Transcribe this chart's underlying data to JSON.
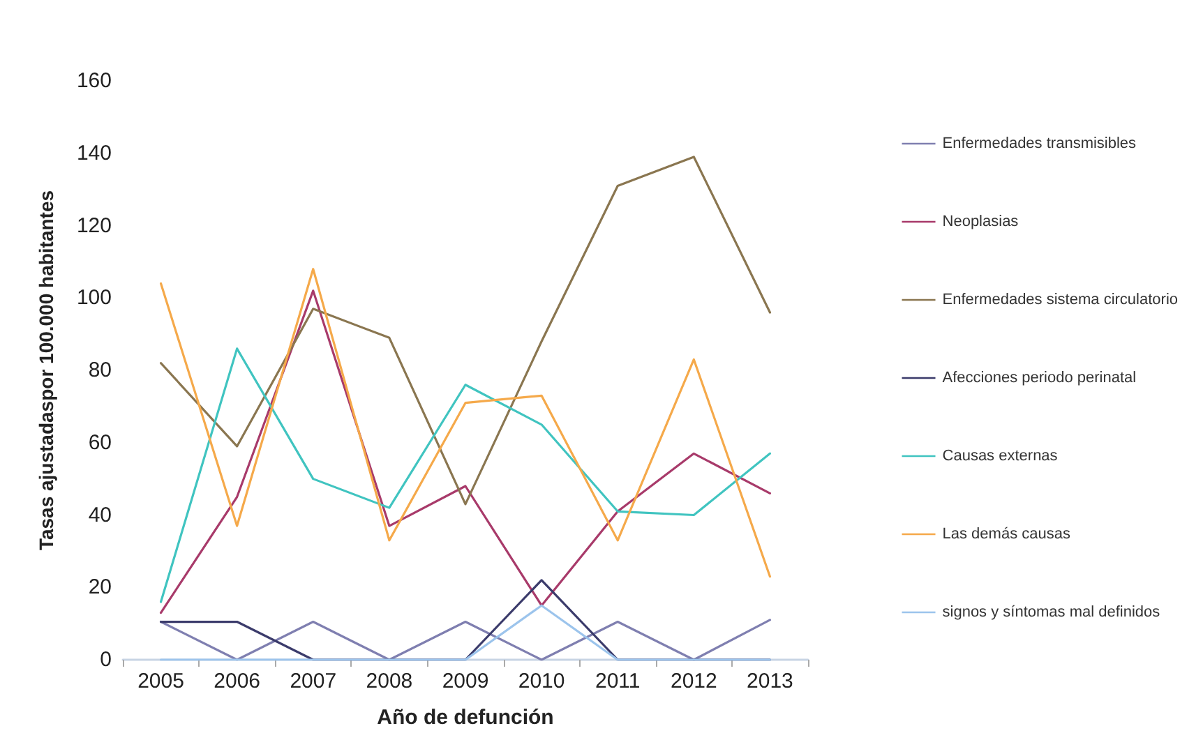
{
  "chart_data": {
    "type": "line",
    "xlabel": "Año de defunción",
    "ylabel": "Tasas ajustadaspor 100.000 habitantes",
    "categories": [
      "2005",
      "2006",
      "2007",
      "2008",
      "2009",
      "2010",
      "2011",
      "2012",
      "2013"
    ],
    "ylim": [
      0,
      160
    ],
    "yticks": [
      0,
      20,
      40,
      60,
      80,
      100,
      120,
      140,
      160
    ],
    "grid": false,
    "legend": "right",
    "marker": "none",
    "line_style": "solid",
    "series": [
      {
        "name": "Enfermedades transmisibles",
        "color": "#7f7fb0",
        "values": [
          10.5,
          0,
          10.5,
          0,
          10.5,
          0,
          10.5,
          0,
          11
        ]
      },
      {
        "name": "Neoplasias",
        "color": "#a83a6a",
        "values": [
          13,
          45,
          102,
          37,
          48,
          15,
          41,
          57,
          46
        ]
      },
      {
        "name": "Enfermedades sistema circulatorio",
        "color": "#8a7650",
        "values": [
          82,
          59,
          97,
          89,
          43,
          88,
          131,
          139,
          96
        ]
      },
      {
        "name": "Afecciones periodo perinatal",
        "color": "#3b3b6b",
        "values": [
          10.5,
          10.5,
          0,
          0,
          0,
          22,
          0,
          0,
          0
        ]
      },
      {
        "name": "Causas externas",
        "color": "#40c4c0",
        "values": [
          16,
          86,
          50,
          42,
          76,
          65,
          41,
          40,
          57
        ]
      },
      {
        "name": "Las demás causas",
        "color": "#f5a94a",
        "values": [
          104,
          37,
          108,
          33,
          71,
          73,
          33,
          83,
          23
        ]
      },
      {
        "name": "signos y síntomas mal definidos",
        "color": "#9cc4ec",
        "values": [
          0,
          0,
          0,
          0,
          0,
          15,
          0,
          0,
          0
        ]
      }
    ]
  }
}
